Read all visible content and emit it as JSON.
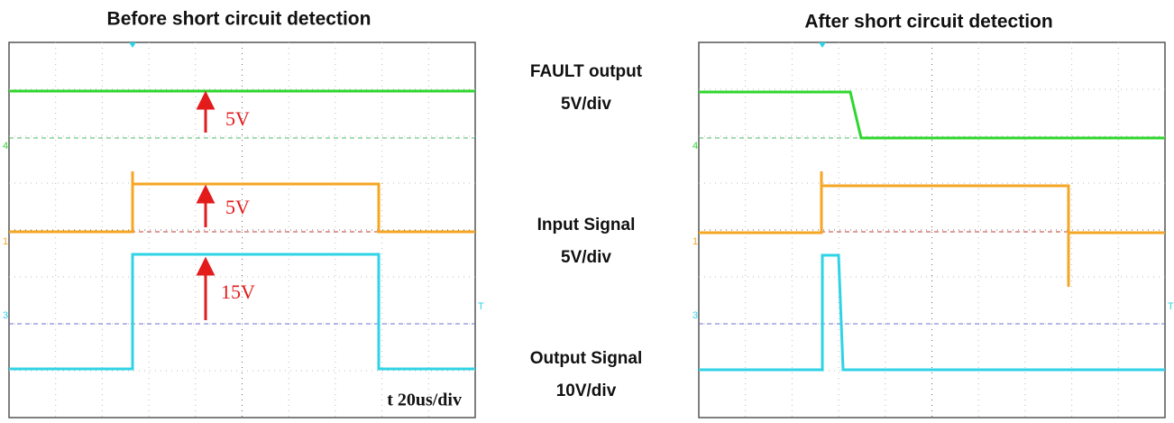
{
  "panels": [
    {
      "title": "Before short circuit detection",
      "annotations": [
        "5V",
        "5V",
        "15V"
      ],
      "timebase": "t 20us/div",
      "markers": [
        "4",
        "1",
        "3",
        "T"
      ]
    },
    {
      "title": "After short circuit detection",
      "markers": [
        "4",
        "1",
        "3",
        "T"
      ]
    }
  ],
  "legend": [
    {
      "name": "FAULT output",
      "scale": "5V/div"
    },
    {
      "name": "Input Signal",
      "scale": "5V/div"
    },
    {
      "name": "Output Signal",
      "scale": "10V/div"
    }
  ]
}
